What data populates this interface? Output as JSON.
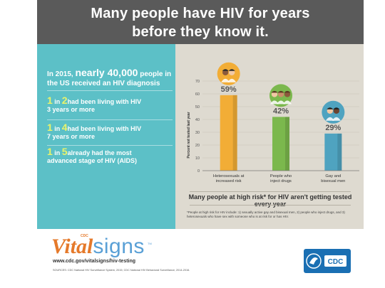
{
  "header": {
    "line1": "Many people have HIV for years",
    "line2": "before they know it."
  },
  "intro": {
    "prefix": "In 2015, ",
    "highlight": "nearly 40,000",
    "suffix": " people in the US received an HIV diagnosis"
  },
  "stats": [
    {
      "n": "1",
      "mid": " in ",
      "d": "2",
      "rest1": "had been living with HIV",
      "rest2": "3 years or more"
    },
    {
      "n": "1",
      "mid": " in ",
      "d": "4",
      "rest1": "had been living with HIV",
      "rest2": "7 years or more"
    },
    {
      "n": "1",
      "mid": " in ",
      "d": "5",
      "rest1": "already had the most",
      "rest2": "advanced stage of HIV (AIDS)"
    }
  ],
  "chart_data": {
    "type": "bar",
    "categories": [
      "Heterosexuals at increased risk",
      "People who inject drugs",
      "Gay and bisexual men"
    ],
    "category_lines": [
      [
        "Heterosexuals at",
        "increased risk"
      ],
      [
        "People who",
        "inject drugs"
      ],
      [
        "Gay and",
        "bisexual men"
      ]
    ],
    "values": [
      59,
      42,
      29
    ],
    "data_labels": [
      "59%",
      "42%",
      "29%"
    ],
    "ylabel": "Percent not tested last year",
    "ylim": [
      0,
      70
    ],
    "yticks": [
      "0",
      "10",
      "20",
      "30",
      "40",
      "50",
      "60",
      "70"
    ],
    "grid": true,
    "colors": [
      "#f2ad36",
      "#7bb84d",
      "#4fa3c0"
    ]
  },
  "caption": "Many people at high risk* for HIV aren't getting tested every year",
  "footnote": "*People at high risk for HIV include: 1) sexually active gay and bisexual men, 2) people who inject drugs, and 3) heterosexuals who have sex with someone who is at risk for or has HIV.",
  "footer": {
    "logo_cdc": "CDC",
    "logo_vital": "Vital",
    "logo_signs": "signs",
    "logo_tm": "TM",
    "url": "www.cdc.gov/vitalsigns/hiv-testing",
    "sources": "SOURCES: CDC National HIV Surveillance System, 2015; CDC National HIV Behavioral Surveillance, 2014-2016.",
    "badge_text": "CDC"
  },
  "colors": {
    "header_bg": "#5a5a5a",
    "left_panel": "#5cc0c7",
    "right_panel": "#dedad0",
    "stat_highlight": "#e9f36a"
  }
}
